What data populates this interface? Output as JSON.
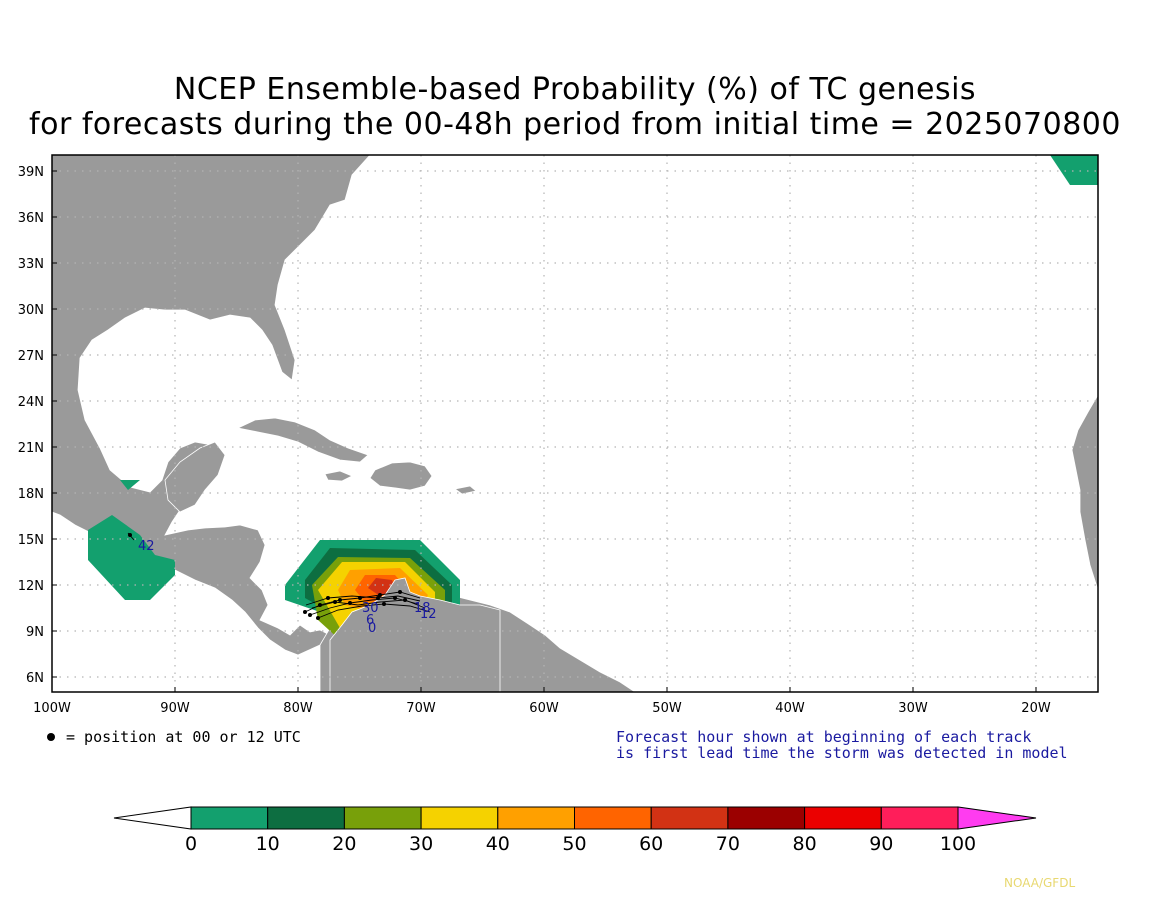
{
  "title": {
    "line1": "NCEP Ensemble-based Probability (%) of TC genesis",
    "line2": "for forecasts during the 00-48h period from initial time = 2025070800"
  },
  "map": {
    "lat_labels": [
      "39N",
      "36N",
      "33N",
      "30N",
      "27N",
      "24N",
      "21N",
      "18N",
      "15N",
      "12N",
      "9N",
      "6N"
    ],
    "lon_labels": [
      "100W",
      "90W",
      "80W",
      "70W",
      "60W",
      "50W",
      "40W",
      "30W",
      "20W"
    ],
    "colors": {
      "land": "#9a9a9a",
      "ocean": "#ffffff",
      "grid": "#b4b4b4",
      "track": "#000000",
      "forecast_hour": "#1a1aa0"
    },
    "forecast_hour_labels": [
      "42",
      "30",
      "6",
      "0",
      "18",
      "12"
    ]
  },
  "notes": {
    "legend_dot": "= position at 00 or 12 UTC",
    "forecast_hour_line1": "Forecast hour shown at beginning of each track",
    "forecast_hour_line2": "is first lead time the storm was detected in model"
  },
  "colorbar": {
    "labels": [
      "0",
      "10",
      "20",
      "30",
      "40",
      "50",
      "60",
      "70",
      "80",
      "90",
      "100"
    ],
    "colors": [
      "#13a06e",
      "#0d6e41",
      "#78a00a",
      "#f5d200",
      "#ffa000",
      "#ff6400",
      "#d23214",
      "#9b0000",
      "#eb0000",
      "#ff1e5a",
      "#ff3cf0"
    ]
  },
  "credit": "NOAA/GFDL"
}
